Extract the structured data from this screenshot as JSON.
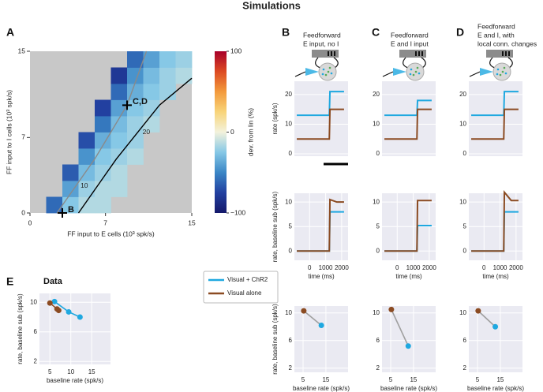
{
  "figure": {
    "title": "Simulations",
    "panels": [
      "A",
      "B",
      "C",
      "D",
      "E"
    ],
    "column_headers": [
      [
        "Feedforward",
        "E input, no I"
      ],
      [
        "Feedforward",
        "E and I input"
      ],
      [
        "Feedforward",
        "E and I, with",
        "local conn. changes"
      ]
    ],
    "section_label": "Data"
  },
  "chart_data": [
    {
      "type": "heatmap",
      "xlabel": "FF input to E cells (10³  spk/s)",
      "ylabel": "FF input to I cells (10³  spk/s)",
      "xlim": [
        0,
        15
      ],
      "ylim": [
        0,
        15
      ],
      "xticks": [
        0,
        7,
        15
      ],
      "yticks": [
        0,
        7,
        15
      ],
      "xbins": [
        0,
        1.5,
        3,
        4.5,
        6,
        7.5,
        9,
        10.5,
        12,
        13.5,
        15
      ],
      "ybins": [
        0,
        1.5,
        3,
        4.5,
        6,
        7.5,
        9,
        10.5,
        12,
        13.5,
        15
      ],
      "z": [
        [
          null,
          -60,
          -25,
          -15,
          -15,
          null,
          null,
          null,
          null,
          null
        ],
        [
          null,
          null,
          -40,
          -20,
          -15,
          -15,
          null,
          null,
          null,
          null
        ],
        [
          null,
          null,
          -65,
          -30,
          -20,
          -15,
          null,
          null,
          null,
          null
        ],
        [
          null,
          null,
          null,
          -45,
          -25,
          -20,
          -15,
          null,
          null,
          null
        ],
        [
          null,
          null,
          null,
          -70,
          -35,
          -25,
          -20,
          null,
          null,
          null
        ],
        [
          null,
          null,
          null,
          null,
          -55,
          -30,
          -20,
          -15,
          null,
          null
        ],
        [
          null,
          null,
          null,
          null,
          -75,
          -40,
          -25,
          -20,
          null,
          null
        ],
        [
          null,
          null,
          null,
          null,
          null,
          -60,
          -35,
          -25,
          -20,
          null
        ],
        [
          null,
          null,
          null,
          null,
          null,
          -80,
          -45,
          -30,
          -20,
          -15
        ],
        [
          null,
          null,
          null,
          null,
          null,
          null,
          -60,
          -40,
          -25,
          -20
        ]
      ],
      "nan_color": "#c8c8c8",
      "colorbar": {
        "label": "dev. from lin (%)",
        "lim": [
          -100,
          100
        ],
        "ticks": [
          {
            "value": -100,
            "label": "−100"
          },
          0,
          100
        ],
        "colors": [
          "#14186a",
          "#2240a0",
          "#3a86c6",
          "#86c8e6",
          "#f3f2dc",
          "#f8d479",
          "#f39a3c",
          "#dc4a22",
          "#a8002a"
        ]
      },
      "contours": [
        {
          "label": "10",
          "color": "#8a8a8a",
          "x": [
            2.5,
            6,
            9,
            10.8
          ],
          "y": [
            0,
            5,
            10,
            15
          ]
        },
        {
          "label": "20",
          "color": "#000000",
          "x": [
            4.5,
            8,
            12,
            15
          ],
          "y": [
            0,
            5,
            10,
            12.5
          ]
        }
      ],
      "annotations": [
        {
          "text": "C,D",
          "x": 9,
          "y": 10
        },
        {
          "text": "B",
          "x": 3,
          "y": 0
        }
      ]
    },
    {
      "type": "line",
      "ylabel": "rate (spk/s)",
      "x": [
        -800,
        300,
        1230,
        1270,
        1700,
        2150
      ],
      "xlim": [
        -950,
        2400
      ],
      "ylim": [
        -0.8,
        24.5
      ],
      "yticks": [
        0,
        10,
        20
      ],
      "grid": true,
      "series": [
        {
          "color": "#1fa8e0",
          "values": [
            13,
            13,
            13,
            21,
            21,
            21
          ]
        },
        {
          "color": "#8b4b22",
          "values": [
            5,
            5,
            5,
            15,
            15,
            15
          ]
        }
      ]
    },
    {
      "type": "line",
      "x": [
        -800,
        300,
        1230,
        1270,
        1700,
        2150
      ],
      "xlim": [
        -950,
        2400
      ],
      "ylim": [
        -0.8,
        24.5
      ],
      "yticks": [
        0,
        10,
        20
      ],
      "grid": true,
      "series": [
        {
          "color": "#1fa8e0",
          "values": [
            13,
            13,
            13,
            18,
            18,
            18
          ]
        },
        {
          "color": "#8b4b22",
          "values": [
            5,
            5,
            5,
            15,
            15,
            15
          ]
        }
      ]
    },
    {
      "type": "line",
      "x": [
        -800,
        300,
        1230,
        1270,
        1700,
        2150
      ],
      "xlim": [
        -950,
        2400
      ],
      "ylim": [
        -0.8,
        24.5
      ],
      "yticks": [
        0,
        10,
        20
      ],
      "grid": true,
      "series": [
        {
          "color": "#1fa8e0",
          "values": [
            13,
            13,
            13,
            21,
            21,
            21
          ]
        },
        {
          "color": "#8b4b22",
          "values": [
            5,
            5,
            5,
            15,
            15,
            15
          ]
        }
      ]
    },
    {
      "type": "line",
      "ylabel": "rate, baseline sub (spk/s)",
      "xlabel": "time (ms)",
      "x": [
        -800,
        300,
        1230,
        1270,
        1700,
        2150
      ],
      "xlim": [
        -950,
        2400
      ],
      "xticks": [
        0,
        1000,
        2000
      ],
      "ylim": [
        -1.9,
        11.8
      ],
      "yticks": [
        0,
        5,
        10
      ],
      "grid": true,
      "series": [
        {
          "color": "#1fa8e0",
          "values": [
            0,
            0,
            0,
            8,
            8,
            8
          ]
        },
        {
          "color": "#8b4b22",
          "values": [
            0,
            0,
            0,
            10.5,
            10,
            10
          ]
        }
      ]
    },
    {
      "type": "line",
      "xlabel": "time (ms)",
      "x": [
        -800,
        300,
        1230,
        1270,
        1700,
        2150
      ],
      "xlim": [
        -950,
        2400
      ],
      "xticks": [
        0,
        1000,
        2000
      ],
      "ylim": [
        -1.9,
        11.8
      ],
      "yticks": [
        0,
        5,
        10
      ],
      "grid": true,
      "series": [
        {
          "color": "#1fa8e0",
          "values": [
            0,
            0,
            0,
            5.2,
            5.2,
            5.2
          ]
        },
        {
          "color": "#8b4b22",
          "values": [
            0,
            0,
            0,
            10.3,
            10.3,
            10.3
          ]
        }
      ]
    },
    {
      "type": "line",
      "xlabel": "time (ms)",
      "x": [
        -800,
        300,
        1230,
        1270,
        1700,
        2150
      ],
      "xlim": [
        -950,
        2400
      ],
      "xticks": [
        0,
        1000,
        2000
      ],
      "ylim": [
        -1.9,
        11.8
      ],
      "yticks": [
        0,
        5,
        10
      ],
      "grid": true,
      "series": [
        {
          "color": "#1fa8e0",
          "values": [
            0,
            0,
            0,
            8,
            8,
            8
          ]
        },
        {
          "color": "#8b4b22",
          "values": [
            0,
            0,
            0,
            12,
            10.3,
            10.3
          ]
        }
      ]
    },
    {
      "type": "scatter",
      "ylabel": "rate, baseline sub (spk/s)",
      "xlabel": "baseline rate (spk/s)",
      "x": [
        5.3,
        13
      ],
      "values": [
        10.3,
        8.2
      ],
      "point_colors": [
        "#8b4b22",
        "#1fa8e0"
      ],
      "color": "#a0a0a0",
      "xlim": [
        1.2,
        24.7
      ],
      "ylim": [
        1.4,
        11
      ],
      "xticks": [
        5,
        15
      ],
      "yticks": [
        2,
        6,
        10
      ],
      "grid": true
    },
    {
      "type": "scatter",
      "xlabel": "baseline rate (spk/s)",
      "x": [
        5.3,
        12.7
      ],
      "values": [
        10.5,
        5.2
      ],
      "point_colors": [
        "#8b4b22",
        "#1fa8e0"
      ],
      "color": "#a0a0a0",
      "xlim": [
        1.2,
        24.7
      ],
      "ylim": [
        1.4,
        11
      ],
      "xticks": [
        5,
        15
      ],
      "yticks": [
        2,
        6,
        10
      ],
      "grid": true
    },
    {
      "type": "scatter",
      "xlabel": "baseline rate (spk/s)",
      "x": [
        5.3,
        12.8
      ],
      "values": [
        10.3,
        8.0
      ],
      "point_colors": [
        "#8b4b22",
        "#1fa8e0"
      ],
      "color": "#a0a0a0",
      "xlim": [
        1.2,
        24.7
      ],
      "ylim": [
        1.4,
        11
      ],
      "xticks": [
        5,
        15
      ],
      "yticks": [
        2,
        6,
        10
      ],
      "grid": true
    },
    {
      "type": "scatter",
      "ylabel": "rate, baseline sub (spk/s)",
      "xlabel": "baseline rate (spk/s)",
      "xlim": [
        2.5,
        19.5
      ],
      "ylim": [
        1.6,
        11.2
      ],
      "xticks": [
        5,
        10,
        15
      ],
      "yticks": [
        2,
        6,
        10
      ],
      "grid": true,
      "legend": "right",
      "series": [
        {
          "name": "Visual + ChR2",
          "color": "#1fa8e0",
          "x": [
            6.1,
            9.5,
            12.2
          ],
          "values": [
            10.1,
            8.7,
            8.0
          ]
        },
        {
          "name": "Visual alone",
          "color": "#8b4b22",
          "x": [
            5,
            6.7,
            7.1
          ],
          "values": [
            9.9,
            9.1,
            8.9
          ]
        }
      ]
    }
  ]
}
